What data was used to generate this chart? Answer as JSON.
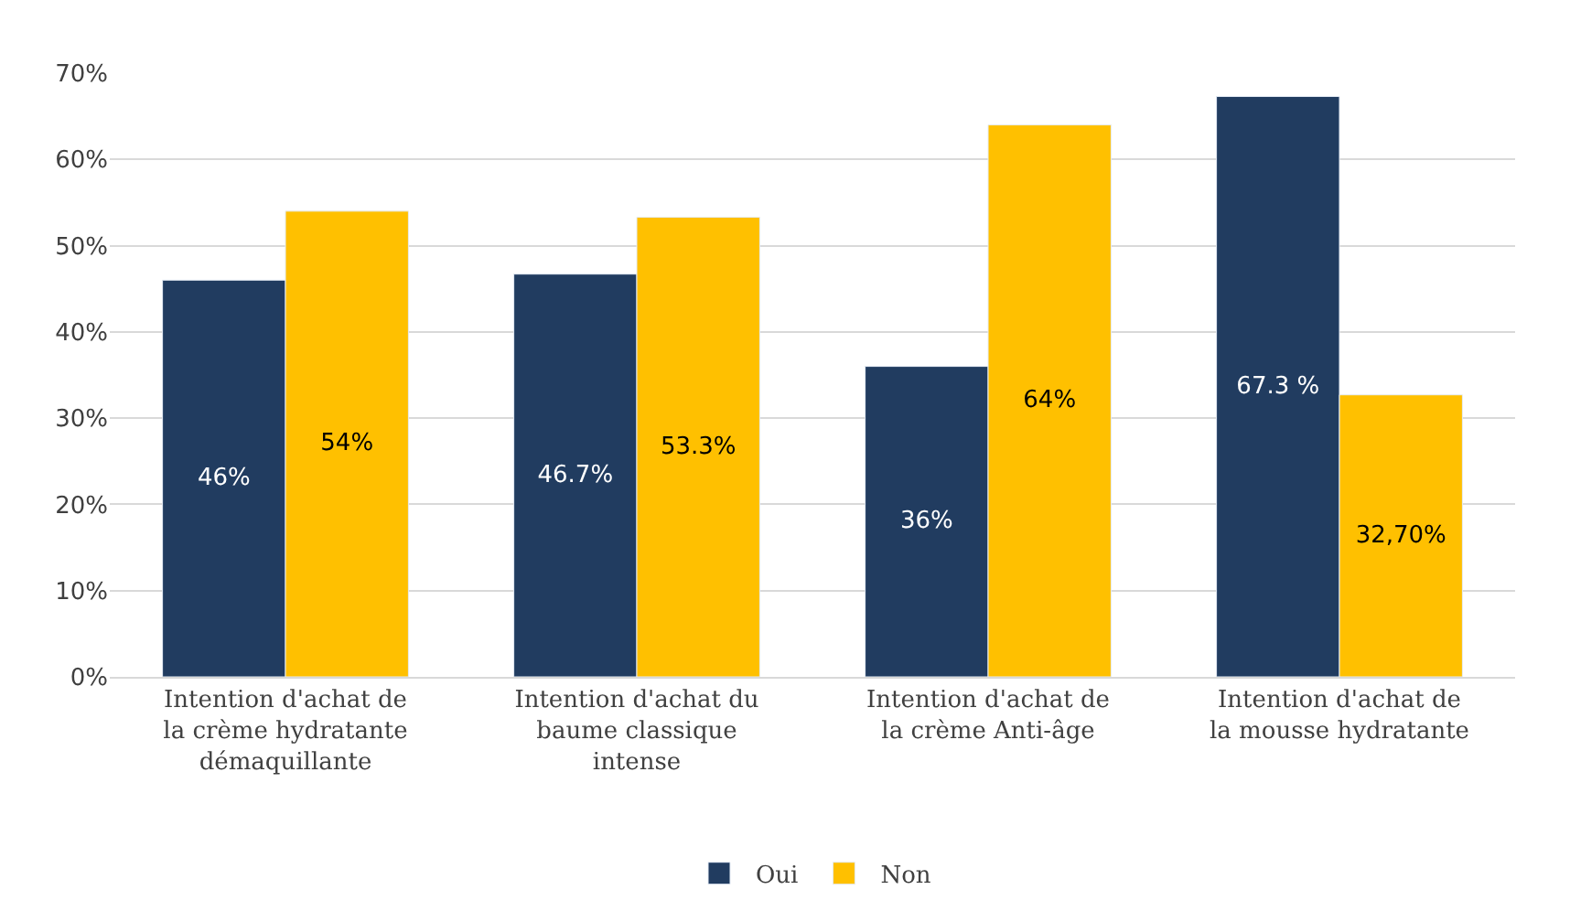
{
  "chart_data": {
    "type": "bar",
    "categories": [
      "Intention d'achat de la crème hydratante démaquillante",
      "Intention d'achat du baume classique intense",
      "Intention d'achat de la crème Anti-âge",
      "Intention d'achat de la mousse hydratante"
    ],
    "series": [
      {
        "name": "Oui",
        "color": "#213c60",
        "values": [
          46,
          46.7,
          36,
          67.3
        ],
        "value_labels": [
          "46%",
          "46.7%",
          "36%",
          "67.3 %"
        ]
      },
      {
        "name": "Non",
        "color": "#ffc000",
        "values": [
          54,
          53.3,
          64,
          32.7
        ],
        "value_labels": [
          "54%",
          "53.3%",
          "64%",
          "32,70%"
        ]
      }
    ],
    "ylim": [
      0,
      70
    ],
    "yticks": [
      {
        "value": 0,
        "label": "0%"
      },
      {
        "value": 10,
        "label": "10%"
      },
      {
        "value": 20,
        "label": "20%"
      },
      {
        "value": 30,
        "label": "30%"
      },
      {
        "value": 40,
        "label": "40%"
      },
      {
        "value": 50,
        "label": "50%"
      },
      {
        "value": 60,
        "label": "60%"
      },
      {
        "value": 70,
        "label": "70%"
      }
    ],
    "grid": "y",
    "legend": "bottom"
  }
}
